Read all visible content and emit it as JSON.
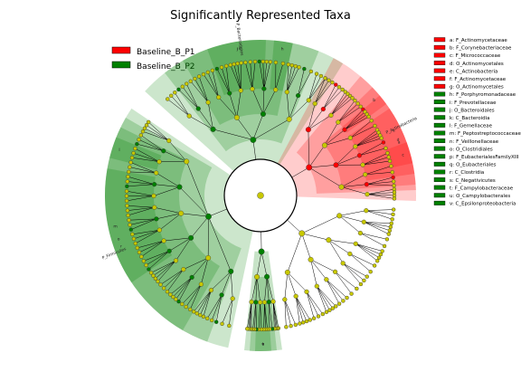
{
  "chart_data": {
    "type": "cladogram",
    "title": "Significantly Represented Taxa",
    "groups": [
      {
        "name": "Baseline_B_P1",
        "color": "#ff0000"
      },
      {
        "name": "Baseline_B_P2",
        "color": "#008000"
      }
    ],
    "key_legend": [
      {
        "text": "a: F_Actinomycetaceae",
        "group": 0
      },
      {
        "text": "b: F_Corynebacteriaceae",
        "group": 0
      },
      {
        "text": "c: F_Micrococcaceae",
        "group": 0
      },
      {
        "text": "d: O_Actinomycetales",
        "group": 0
      },
      {
        "text": "e: C_Actinobacteria",
        "group": 0
      },
      {
        "text": "f: F_Actinomycetaceae",
        "group": 0
      },
      {
        "text": "g: O_Actinomycetales",
        "group": 0
      },
      {
        "text": "h: F_Porphyromonadaceae",
        "group": 1
      },
      {
        "text": "i: F_Prevotellaceae",
        "group": 1
      },
      {
        "text": "j: O_Bacteroidales",
        "group": 1
      },
      {
        "text": "k: C_Bacteroidia",
        "group": 1
      },
      {
        "text": "l: F_Gemellaceae",
        "group": 1
      },
      {
        "text": "m: F_Peptostreptococcaceae",
        "group": 1
      },
      {
        "text": "n: F_Veillonellaceae",
        "group": 1
      },
      {
        "text": "o: O_Clostridiales",
        "group": 1
      },
      {
        "text": "p: F_EubacterialesFamilyXIII",
        "group": 1
      },
      {
        "text": "q: O_Eubacteriales",
        "group": 1
      },
      {
        "text": "r: C_Clostridia",
        "group": 1
      },
      {
        "text": "s: C_Negativicutes",
        "group": 1
      },
      {
        "text": "t: F_Campylobacteraceae",
        "group": 1
      },
      {
        "text": "u: O_Campylobacterales",
        "group": 1
      },
      {
        "text": "v: C_Epsilonproteobacteria",
        "group": 1
      }
    ],
    "clade_labels": [
      {
        "text": "P_Bacteroidetes",
        "group": 1
      },
      {
        "text": "P_Actinobacteria",
        "group": 0
      },
      {
        "text": "P_Firmicutes",
        "group": 1
      }
    ],
    "sector_letters": [
      "a",
      "b",
      "c",
      "d",
      "e",
      "f",
      "g",
      "h",
      "i",
      "j",
      "k",
      "l",
      "m",
      "n",
      "o",
      "p",
      "q",
      "r",
      "s",
      "t",
      "u",
      "v"
    ],
    "colors": {
      "enriched_p1": "#ff0000",
      "enriched_p2": "#008000",
      "not_significant": "#c8c800"
    }
  }
}
